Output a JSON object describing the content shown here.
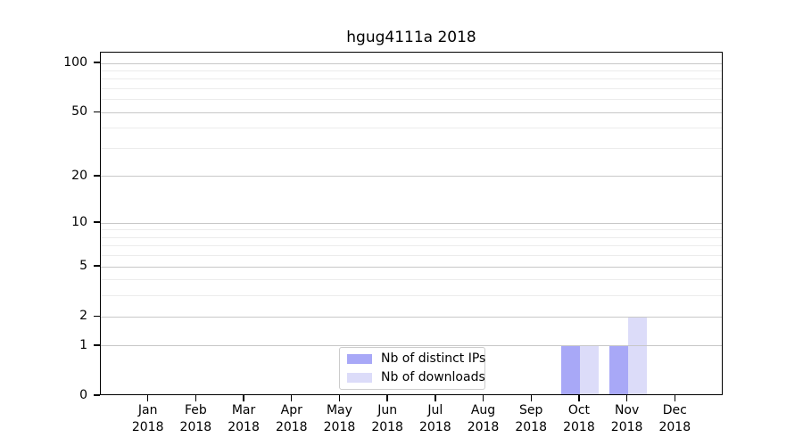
{
  "title": "hgug4111a 2018",
  "chart_data": {
    "type": "bar",
    "title": "hgug4111a 2018",
    "categories": [
      "Jan 2018",
      "Feb 2018",
      "Mar 2018",
      "Apr 2018",
      "May 2018",
      "Jun 2018",
      "Jul 2018",
      "Aug 2018",
      "Sep 2018",
      "Oct 2018",
      "Nov 2018",
      "Dec 2018"
    ],
    "x_tick_labels": [
      {
        "month": "Jan",
        "year": "2018"
      },
      {
        "month": "Feb",
        "year": "2018"
      },
      {
        "month": "Mar",
        "year": "2018"
      },
      {
        "month": "Apr",
        "year": "2018"
      },
      {
        "month": "May",
        "year": "2018"
      },
      {
        "month": "Jun",
        "year": "2018"
      },
      {
        "month": "Jul",
        "year": "2018"
      },
      {
        "month": "Aug",
        "year": "2018"
      },
      {
        "month": "Sep",
        "year": "2018"
      },
      {
        "month": "Oct",
        "year": "2018"
      },
      {
        "month": "Nov",
        "year": "2018"
      },
      {
        "month": "Dec",
        "year": "2018"
      }
    ],
    "series": [
      {
        "name": "Nb of distinct IPs",
        "color": "#a8a8f7",
        "values": [
          0,
          0,
          0,
          0,
          0,
          0,
          0,
          0,
          0,
          1,
          1,
          0
        ]
      },
      {
        "name": "Nb of downloads",
        "color": "#dcdcf9",
        "values": [
          0,
          0,
          0,
          0,
          0,
          0,
          0,
          0,
          0,
          1,
          2,
          0
        ]
      }
    ],
    "y_axis": {
      "scale": "log1p",
      "major_ticks": [
        100,
        50,
        20,
        10,
        5,
        2,
        1,
        0
      ],
      "minor_ticks": [
        90,
        80,
        70,
        60,
        40,
        30,
        9,
        8,
        7,
        6,
        4,
        3
      ],
      "lim": [
        0,
        100
      ]
    },
    "grid": {
      "orientation": "horizontal",
      "major_color": "#c8c8c8",
      "minor_color": "#ececec"
    },
    "legend": {
      "position": "lower-center-inside"
    }
  },
  "colors": {
    "background": "#ffffff",
    "axis": "#000000",
    "text": "#000000",
    "legend_border": "#cccccc",
    "bar_distinct_ips": "#a8a8f7",
    "bar_downloads": "#dcdcf9"
  }
}
